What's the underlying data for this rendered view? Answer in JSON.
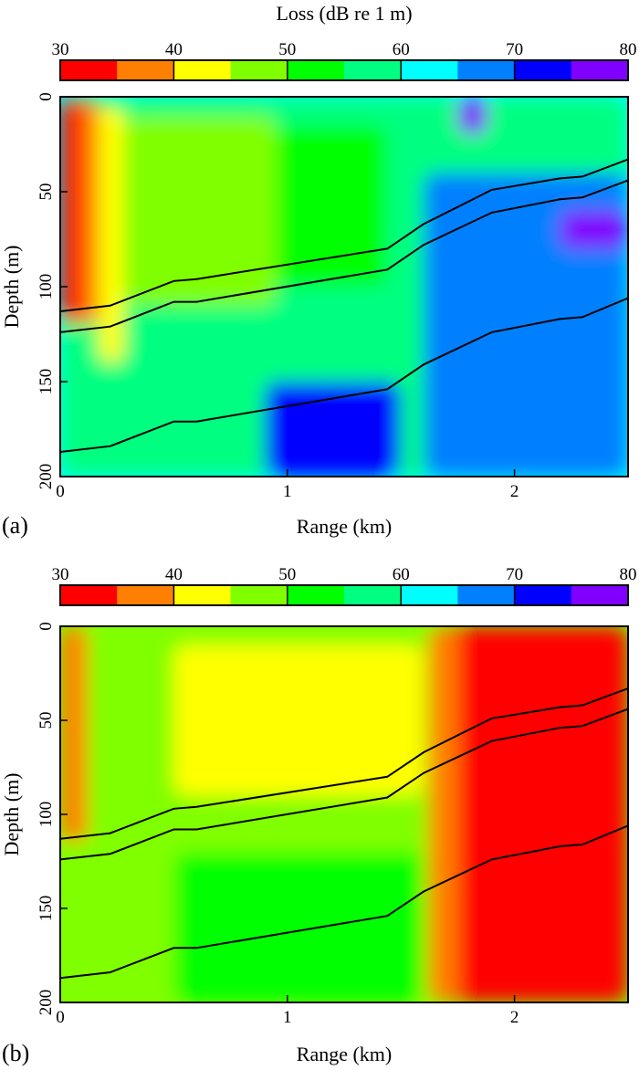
{
  "colorbar": {
    "title": "Loss (dB re 1 m)",
    "ticks": [
      30,
      40,
      50,
      60,
      70,
      80
    ],
    "levels": [
      30,
      35,
      40,
      45,
      50,
      55,
      60,
      65,
      70,
      75,
      80
    ],
    "colors": [
      "#ff0000",
      "#ff8000",
      "#ffff00",
      "#80ff00",
      "#00ff00",
      "#00ff80",
      "#00ffff",
      "#0080ff",
      "#0000ff",
      "#8000ff"
    ]
  },
  "chart_data": [
    {
      "type": "heatmap",
      "panel_label": "(a)",
      "xlabel": "Range (km)",
      "ylabel": "Depth (m)",
      "xlim": [
        0,
        2.5
      ],
      "ylim": [
        200,
        0
      ],
      "xticks": [
        0,
        1,
        2
      ],
      "yticks": [
        0,
        50,
        100,
        150,
        200
      ],
      "colorbar_title": "Loss (dB re 1 m)",
      "value_unit": "dB",
      "interfaces": [
        {
          "x": [
            0,
            0.22,
            0.5,
            0.6,
            1.44,
            1.6,
            1.9,
            2.2,
            2.3,
            2.5
          ],
          "y": [
            113,
            110,
            97,
            96,
            80,
            67,
            49,
            43,
            42,
            33
          ]
        },
        {
          "x": [
            0,
            0.22,
            0.5,
            0.6,
            1.44,
            1.6,
            1.9,
            2.2,
            2.3,
            2.5
          ],
          "y": [
            124,
            121,
            108,
            108,
            91,
            78,
            61,
            54,
            53,
            44
          ]
        },
        {
          "x": [
            0,
            0.22,
            0.5,
            0.6,
            1.44,
            1.6,
            1.9,
            2.2,
            2.3,
            2.5
          ],
          "y": [
            187,
            184,
            171,
            171,
            154,
            141,
            124,
            117,
            116,
            106
          ]
        }
      ],
      "field_regions": [
        {
          "x": [
            0,
            2.5
          ],
          "y": [
            0,
            200
          ],
          "value": 57
        },
        {
          "x": [
            0,
            0.1
          ],
          "y": [
            0,
            120
          ],
          "value": 32
        },
        {
          "x": [
            0.1,
            0.17
          ],
          "y": [
            0,
            120
          ],
          "value": 38
        },
        {
          "x": [
            0.17,
            0.28
          ],
          "y": [
            5,
            140
          ],
          "value": 43
        },
        {
          "x": [
            0.28,
            0.95
          ],
          "y": [
            10,
            110
          ],
          "value": 48
        },
        {
          "x": [
            0.95,
            1.44
          ],
          "y": [
            15,
            100
          ],
          "value": 53
        },
        {
          "x": [
            1.44,
            2.5
          ],
          "y": [
            0,
            30
          ],
          "value": 58
        },
        {
          "x": [
            1.6,
            2.5
          ],
          "y": [
            40,
            200
          ],
          "value": 68
        },
        {
          "x": [
            0.9,
            1.5
          ],
          "y": [
            150,
            200
          ],
          "value": 73
        },
        {
          "x": [
            1.75,
            1.88
          ],
          "y": [
            0,
            20
          ],
          "value": 78
        },
        {
          "x": [
            2.2,
            2.5
          ],
          "y": [
            60,
            80
          ],
          "value": 77
        }
      ]
    },
    {
      "type": "heatmap",
      "panel_label": "(b)",
      "xlabel": "Range (km)",
      "ylabel": "Depth (m)",
      "xlim": [
        0,
        2.5
      ],
      "ylim": [
        200,
        0
      ],
      "xticks": [
        0,
        1,
        2
      ],
      "yticks": [
        0,
        50,
        100,
        150,
        200
      ],
      "value_unit": "dB",
      "interfaces": [
        {
          "x": [
            0,
            0.22,
            0.5,
            0.6,
            1.44,
            1.6,
            1.9,
            2.2,
            2.3,
            2.5
          ],
          "y": [
            113,
            110,
            97,
            96,
            80,
            67,
            49,
            43,
            42,
            33
          ]
        },
        {
          "x": [
            0,
            0.22,
            0.5,
            0.6,
            1.44,
            1.6,
            1.9,
            2.2,
            2.3,
            2.5
          ],
          "y": [
            124,
            121,
            108,
            108,
            91,
            78,
            61,
            54,
            53,
            44
          ]
        },
        {
          "x": [
            0,
            0.22,
            0.5,
            0.6,
            1.44,
            1.6,
            1.9,
            2.2,
            2.3,
            2.5
          ],
          "y": [
            187,
            184,
            171,
            171,
            154,
            141,
            124,
            117,
            116,
            106
          ]
        }
      ],
      "field_regions": [
        {
          "x": [
            0,
            2.5
          ],
          "y": [
            0,
            200
          ],
          "value": 48
        },
        {
          "x": [
            0,
            0.12
          ],
          "y": [
            0,
            115
          ],
          "value": 37
        },
        {
          "x": [
            0.5,
            1.6
          ],
          "y": [
            10,
            90
          ],
          "value": 43
        },
        {
          "x": [
            0.5,
            1.6
          ],
          "y": [
            120,
            200
          ],
          "value": 53
        },
        {
          "x": [
            1.7,
            2.5
          ],
          "y": [
            0,
            200
          ],
          "value": 32
        },
        {
          "x": [
            1.62,
            1.75
          ],
          "y": [
            0,
            200
          ],
          "value": 38
        }
      ]
    }
  ]
}
